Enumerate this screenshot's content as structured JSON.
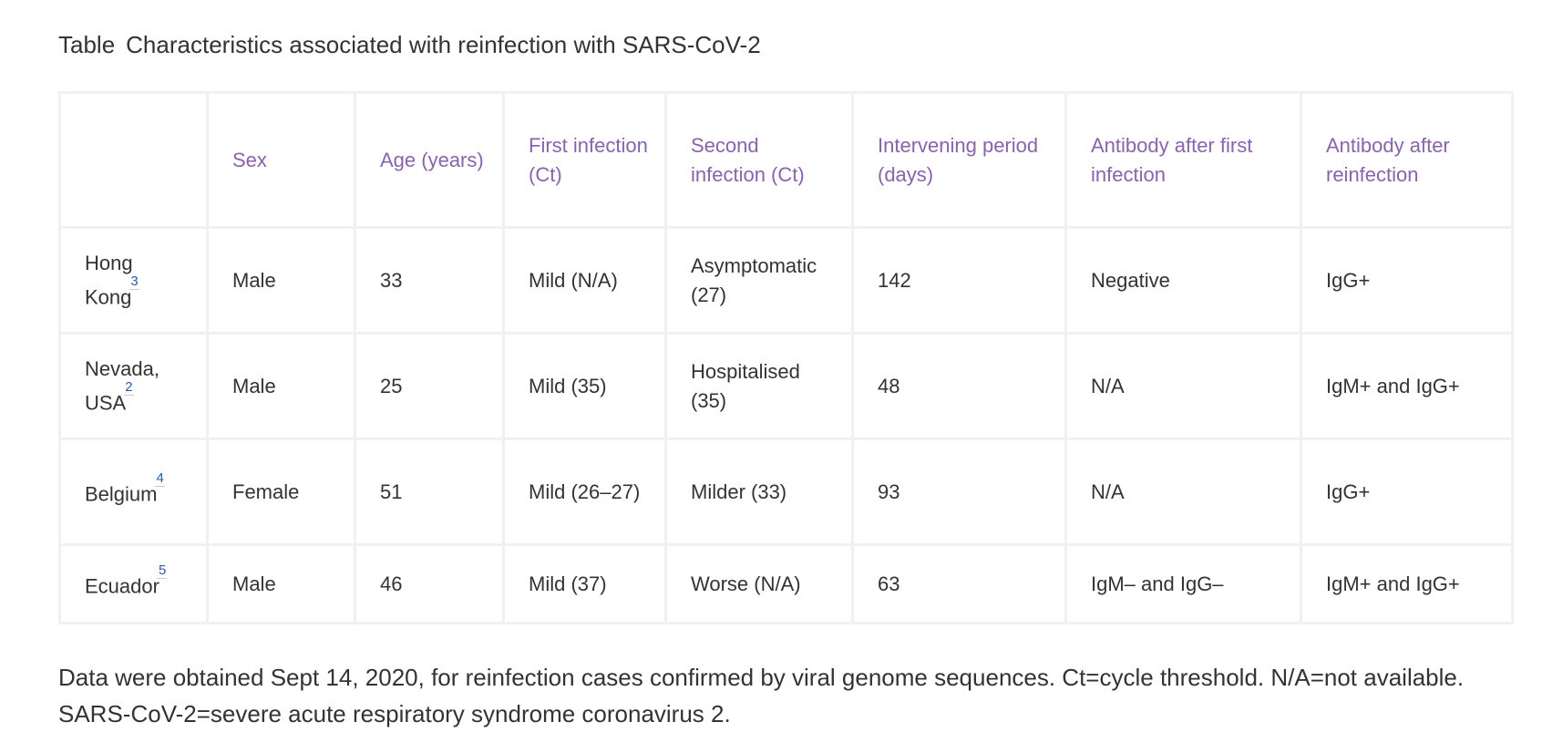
{
  "caption": {
    "label": "Table",
    "title": "Characteristics associated with reinfection with SARS-CoV-2"
  },
  "headers": [
    "",
    "Sex",
    "Age (years)",
    "First infection (Ct)",
    "Second infection (Ct)",
    "Intervening period (days)",
    "Antibody after first infection",
    "Antibody after reinfection"
  ],
  "rows": [
    {
      "location": "Hong Kong",
      "ref": "3",
      "sex": "Male",
      "age": "33",
      "first_infection": "Mild (N/A)",
      "second_infection": "Asymptomatic (27)",
      "intervening_period": "142",
      "antibody_first": "Negative",
      "antibody_reinfection": "IgG+"
    },
    {
      "location": "Nevada, USA",
      "ref": "2",
      "sex": "Male",
      "age": "25",
      "first_infection": "Mild (35)",
      "second_infection": "Hospitalised (35)",
      "intervening_period": "48",
      "antibody_first": "N/A",
      "antibody_reinfection": "IgM+ and IgG+"
    },
    {
      "location": "Belgium",
      "ref": "4",
      "sex": "Female",
      "age": "51",
      "first_infection": "Mild (26–27)",
      "second_infection": "Milder (33)",
      "intervening_period": "93",
      "antibody_first": "N/A",
      "antibody_reinfection": "IgG+"
    },
    {
      "location": "Ecuador",
      "ref": "5",
      "sex": "Male",
      "age": "46",
      "first_infection": "Mild (37)",
      "second_infection": "Worse (N/A)",
      "intervening_period": "63",
      "antibody_first": "IgM– and IgG–",
      "antibody_reinfection": "IgM+ and IgG+"
    }
  ],
  "footnote": "Data were obtained Sept 14, 2020, for reinfection cases confirmed by viral genome sequences. Ct=cycle threshold. N/A=not available. SARS-CoV-2=severe acute respiratory syndrome coronavirus 2."
}
